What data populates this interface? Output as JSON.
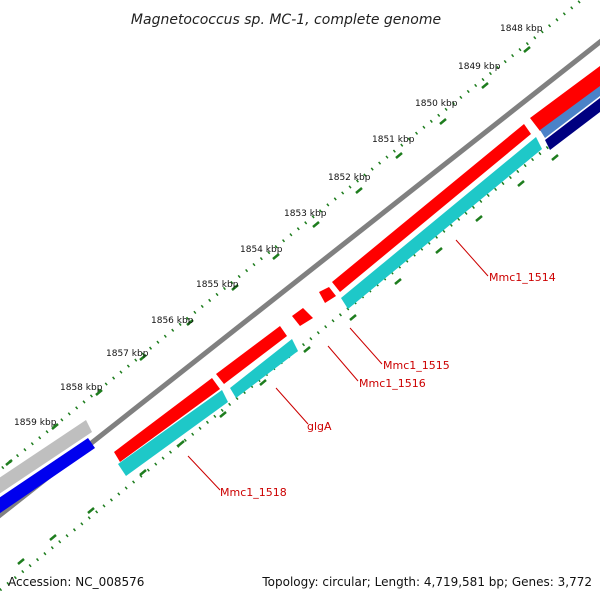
{
  "title": "Magnetococcus sp. MC-1, complete genome",
  "footer": {
    "accession": "Accession: NC_008576",
    "summary": "Topology: circular; Length: 4,719,581 bp; Genes: 3,772"
  },
  "colors": {
    "backbone": "#808080",
    "forward_cds": "#ff0000",
    "forward_cds_dark": "#c80000",
    "reverse_cds": "#1ec8c8",
    "reverse_cds_dark": "#159999",
    "blue_feature": "#0000ee",
    "navy_feature": "#000080",
    "grey_feature": "#bfbfbf",
    "tick": "#1e7d1e",
    "gene_label": "#cc0000"
  },
  "ticks": [
    {
      "label": "1848 kbp",
      "kbp": 1848
    },
    {
      "label": "1849 kbp",
      "kbp": 1849
    },
    {
      "label": "1850 kbp",
      "kbp": 1850
    },
    {
      "label": "1851 kbp",
      "kbp": 1851
    },
    {
      "label": "1852 kbp",
      "kbp": 1852
    },
    {
      "label": "1853 kbp",
      "kbp": 1853
    },
    {
      "label": "1854 kbp",
      "kbp": 1854
    },
    {
      "label": "1855 kbp",
      "kbp": 1855
    },
    {
      "label": "1856 kbp",
      "kbp": 1856
    },
    {
      "label": "1857 kbp",
      "kbp": 1857
    },
    {
      "label": "1858 kbp",
      "kbp": 1858
    },
    {
      "label": "1859 kbp",
      "kbp": 1859
    }
  ],
  "genes": [
    {
      "label": "Mmc1_1514"
    },
    {
      "label": "Mmc1_1515"
    },
    {
      "label": "Mmc1_1516"
    },
    {
      "label": "glgA"
    },
    {
      "label": "Mmc1_1518"
    }
  ]
}
